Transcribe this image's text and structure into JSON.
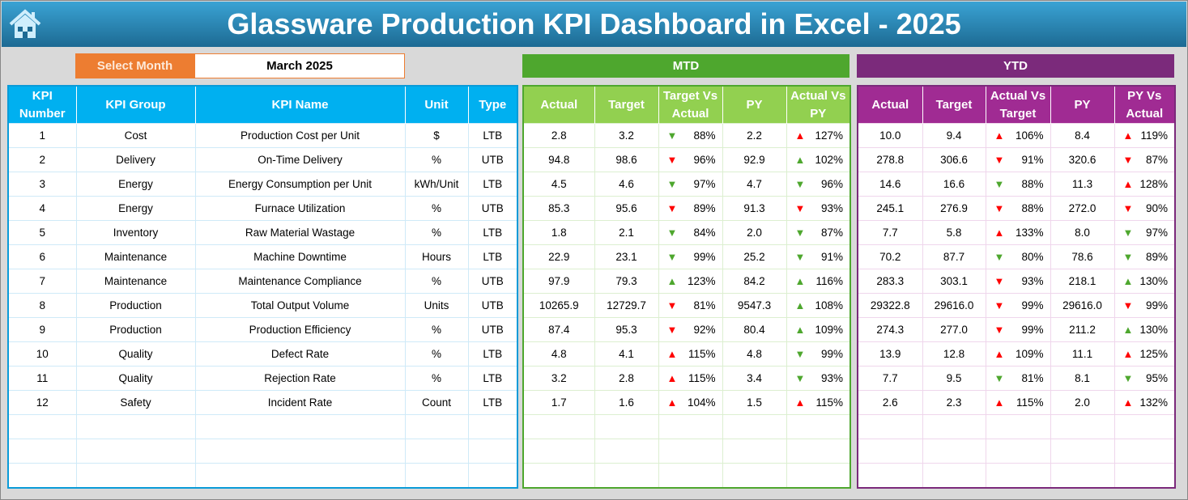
{
  "header": {
    "title": "Glassware Production KPI Dashboard in Excel - 2025",
    "home_icon": "home-icon"
  },
  "selector": {
    "label": "Select Month",
    "value": "March 2025"
  },
  "sections": {
    "mtd": "MTD",
    "ytd": "YTD"
  },
  "colors": {
    "up_good": "#4ea72e",
    "bad": "#ff0000",
    "mtd": "#4ea72e",
    "ytd": "#7b2a7b",
    "kpi": "#00b0f0",
    "select": "#ed7d31"
  },
  "kpi_headers": [
    "KPI Number",
    "KPI Group",
    "KPI Name",
    "Unit",
    "Type"
  ],
  "mtd_headers": [
    "Actual",
    "Target",
    "Target Vs Actual",
    "PY",
    "Actual Vs PY"
  ],
  "ytd_headers": [
    "Actual",
    "Target",
    "Actual Vs Target",
    "PY",
    "PY Vs Actual"
  ],
  "rows": [
    {
      "num": "1",
      "group": "Cost",
      "name": "Production Cost per Unit",
      "unit": "$",
      "type": "LTB",
      "mtd": [
        "2.8",
        "3.2",
        [
          "down",
          "green",
          "88%"
        ],
        "2.2",
        [
          "up",
          "red",
          "127%"
        ]
      ],
      "ytd": [
        "10.0",
        "9.4",
        [
          "up",
          "red",
          "106%"
        ],
        "8.4",
        [
          "up",
          "red",
          "119%"
        ]
      ]
    },
    {
      "num": "2",
      "group": "Delivery",
      "name": "On-Time Delivery",
      "unit": "%",
      "type": "UTB",
      "mtd": [
        "94.8",
        "98.6",
        [
          "down",
          "red",
          "96%"
        ],
        "92.9",
        [
          "up",
          "green",
          "102%"
        ]
      ],
      "ytd": [
        "278.8",
        "306.6",
        [
          "down",
          "red",
          "91%"
        ],
        "320.6",
        [
          "down",
          "red",
          "87%"
        ]
      ]
    },
    {
      "num": "3",
      "group": "Energy",
      "name": "Energy Consumption per Unit",
      "unit": "kWh/Unit",
      "type": "LTB",
      "mtd": [
        "4.5",
        "4.6",
        [
          "down",
          "green",
          "97%"
        ],
        "4.7",
        [
          "down",
          "green",
          "96%"
        ]
      ],
      "ytd": [
        "14.6",
        "16.6",
        [
          "down",
          "green",
          "88%"
        ],
        "11.3",
        [
          "up",
          "red",
          "128%"
        ]
      ]
    },
    {
      "num": "4",
      "group": "Energy",
      "name": "Furnace Utilization",
      "unit": "%",
      "type": "UTB",
      "mtd": [
        "85.3",
        "95.6",
        [
          "down",
          "red",
          "89%"
        ],
        "91.3",
        [
          "down",
          "red",
          "93%"
        ]
      ],
      "ytd": [
        "245.1",
        "276.9",
        [
          "down",
          "red",
          "88%"
        ],
        "272.0",
        [
          "down",
          "red",
          "90%"
        ]
      ]
    },
    {
      "num": "5",
      "group": "Inventory",
      "name": "Raw Material Wastage",
      "unit": "%",
      "type": "LTB",
      "mtd": [
        "1.8",
        "2.1",
        [
          "down",
          "green",
          "84%"
        ],
        "2.0",
        [
          "down",
          "green",
          "87%"
        ]
      ],
      "ytd": [
        "7.7",
        "5.8",
        [
          "up",
          "red",
          "133%"
        ],
        "8.0",
        [
          "down",
          "green",
          "97%"
        ]
      ]
    },
    {
      "num": "6",
      "group": "Maintenance",
      "name": "Machine Downtime",
      "unit": "Hours",
      "type": "LTB",
      "mtd": [
        "22.9",
        "23.1",
        [
          "down",
          "green",
          "99%"
        ],
        "25.2",
        [
          "down",
          "green",
          "91%"
        ]
      ],
      "ytd": [
        "70.2",
        "87.7",
        [
          "down",
          "green",
          "80%"
        ],
        "78.6",
        [
          "down",
          "green",
          "89%"
        ]
      ]
    },
    {
      "num": "7",
      "group": "Maintenance",
      "name": "Maintenance Compliance",
      "unit": "%",
      "type": "UTB",
      "mtd": [
        "97.9",
        "79.3",
        [
          "up",
          "green",
          "123%"
        ],
        "84.2",
        [
          "up",
          "green",
          "116%"
        ]
      ],
      "ytd": [
        "283.3",
        "303.1",
        [
          "down",
          "red",
          "93%"
        ],
        "218.1",
        [
          "up",
          "green",
          "130%"
        ]
      ]
    },
    {
      "num": "8",
      "group": "Production",
      "name": "Total Output Volume",
      "unit": "Units",
      "type": "UTB",
      "mtd": [
        "10265.9",
        "12729.7",
        [
          "down",
          "red",
          "81%"
        ],
        "9547.3",
        [
          "up",
          "green",
          "108%"
        ]
      ],
      "ytd": [
        "29322.8",
        "29616.0",
        [
          "down",
          "red",
          "99%"
        ],
        "29616.0",
        [
          "down",
          "red",
          "99%"
        ]
      ]
    },
    {
      "num": "9",
      "group": "Production",
      "name": "Production Efficiency",
      "unit": "%",
      "type": "UTB",
      "mtd": [
        "87.4",
        "95.3",
        [
          "down",
          "red",
          "92%"
        ],
        "80.4",
        [
          "up",
          "green",
          "109%"
        ]
      ],
      "ytd": [
        "274.3",
        "277.0",
        [
          "down",
          "red",
          "99%"
        ],
        "211.2",
        [
          "up",
          "green",
          "130%"
        ]
      ]
    },
    {
      "num": "10",
      "group": "Quality",
      "name": "Defect Rate",
      "unit": "%",
      "type": "LTB",
      "mtd": [
        "4.8",
        "4.1",
        [
          "up",
          "red",
          "115%"
        ],
        "4.8",
        [
          "down",
          "green",
          "99%"
        ]
      ],
      "ytd": [
        "13.9",
        "12.8",
        [
          "up",
          "red",
          "109%"
        ],
        "11.1",
        [
          "up",
          "red",
          "125%"
        ]
      ]
    },
    {
      "num": "11",
      "group": "Quality",
      "name": "Rejection Rate",
      "unit": "%",
      "type": "LTB",
      "mtd": [
        "3.2",
        "2.8",
        [
          "up",
          "red",
          "115%"
        ],
        "3.4",
        [
          "down",
          "green",
          "93%"
        ]
      ],
      "ytd": [
        "7.7",
        "9.5",
        [
          "down",
          "green",
          "81%"
        ],
        "8.1",
        [
          "down",
          "green",
          "95%"
        ]
      ]
    },
    {
      "num": "12",
      "group": "Safety",
      "name": "Incident Rate",
      "unit": "Count",
      "type": "LTB",
      "mtd": [
        "1.7",
        "1.6",
        [
          "up",
          "red",
          "104%"
        ],
        "1.5",
        [
          "up",
          "red",
          "115%"
        ]
      ],
      "ytd": [
        "2.6",
        "2.3",
        [
          "up",
          "red",
          "115%"
        ],
        "2.0",
        [
          "up",
          "red",
          "132%"
        ]
      ]
    }
  ]
}
